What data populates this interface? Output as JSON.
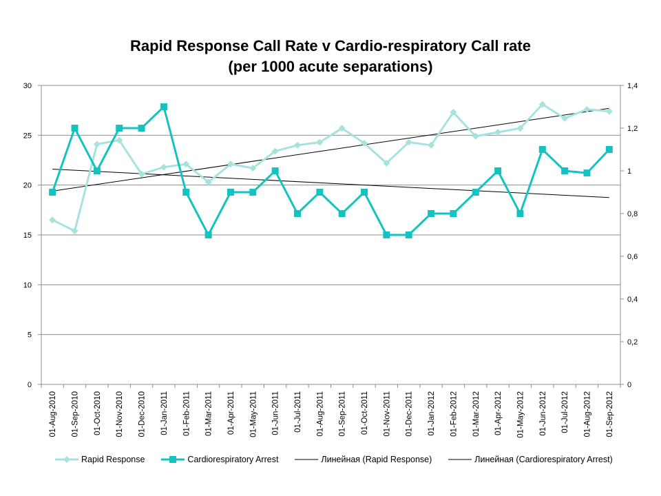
{
  "chart_data": {
    "type": "line",
    "title": [
      "Rapid Response Call Rate v Cardio-respiratory Call rate",
      "(per 1000 acute separations)"
    ],
    "categories": [
      "01-Aug-2010",
      "01-Sep-2010",
      "01-Oct-2010",
      "01-Nov-2010",
      "01-Dec-2010",
      "01-Jan-2011",
      "01-Feb-2011",
      "01-Mar-2011",
      "01-Apr-2011",
      "01-May-2011",
      "01-Jun-2011",
      "01-Jul-2011",
      "01-Aug-2011",
      "01-Sep-2011",
      "01-Oct-2011",
      "01-Nov-2011",
      "01-Dec-2011",
      "01-Jan-2012",
      "01-Feb-2012",
      "01-Mar-2012",
      "01-Apr-2012",
      "01-May-2012",
      "01-Jun-2012",
      "01-Jul-2012",
      "01-Aug-2012",
      "01-Sep-2012"
    ],
    "y_left": {
      "min": 0,
      "max": 30,
      "ticks": [
        "0",
        "5",
        "10",
        "15",
        "20",
        "25",
        "30"
      ],
      "tick_values": [
        0,
        5,
        10,
        15,
        20,
        25,
        30
      ]
    },
    "y_right": {
      "min": 0,
      "max": 1.4,
      "ticks": [
        "0",
        "0,2",
        "0,4",
        "0,6",
        "0,8",
        "1",
        "1,2",
        "1,4"
      ],
      "tick_values": [
        0,
        0.2,
        0.4,
        0.6,
        0.8,
        1,
        1.2,
        1.4
      ]
    },
    "grid": true,
    "legend_position": "bottom",
    "series": [
      {
        "name": "Rapid Response",
        "axis": "left",
        "color": "#a6e3de",
        "marker": "diamond",
        "values": [
          16.5,
          15.4,
          24.1,
          24.5,
          21.1,
          21.8,
          22.1,
          20.3,
          22.1,
          21.7,
          23.4,
          24.0,
          24.3,
          25.7,
          24.2,
          22.2,
          24.3,
          24.0,
          27.3,
          24.9,
          25.3,
          25.7,
          28.1,
          26.7,
          27.6,
          27.4
        ]
      },
      {
        "name": "Cardiorespiratory Arrest",
        "axis": "right",
        "color": "#14c2c2",
        "marker": "square",
        "values": [
          0.9,
          1.2,
          1.0,
          1.2,
          1.2,
          1.3,
          0.9,
          0.7,
          0.9,
          0.9,
          1.0,
          0.8,
          0.9,
          0.8,
          0.9,
          0.7,
          0.7,
          0.8,
          0.8,
          0.9,
          1.0,
          0.8,
          1.1,
          1.0,
          0.99,
          1.1
        ]
      }
    ],
    "trendlines": [
      {
        "name": "Линейная (Rapid Response)",
        "axis": "left",
        "color": "#000000",
        "start": 19.4,
        "end": 27.7
      },
      {
        "name": "Линейная (Cardiorespiratory Arrest)",
        "axis": "right",
        "color": "#000000",
        "start": 1.008,
        "end": 0.875
      }
    ]
  }
}
